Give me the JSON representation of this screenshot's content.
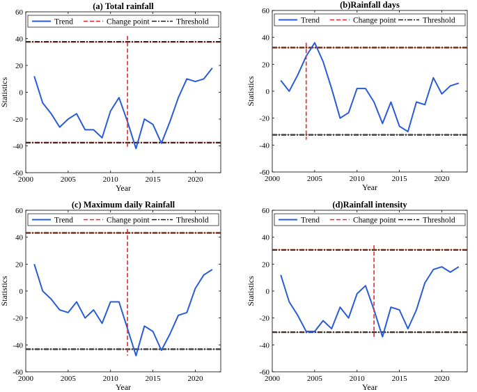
{
  "figure": {
    "xlabel": "Year",
    "ylabel": "Statistics",
    "legend": {
      "trend": "Trend",
      "change": "Change point",
      "threshold": "Threshold"
    },
    "colors": {
      "trend": "#2a5bd7",
      "change": "#e8262b",
      "threshold": "#1a1a1a",
      "threshold_inner": "#b24a2e"
    }
  },
  "chart_data": [
    {
      "type": "line",
      "title": "(a) Total rainfall",
      "xlabel": "Year",
      "ylabel": "Statistics",
      "xlim": [
        2000,
        2023
      ],
      "ylim": [
        -60,
        60
      ],
      "xticks": [
        2000,
        2005,
        2010,
        2015,
        2020
      ],
      "yticks": [
        -60,
        -40,
        -20,
        0,
        20,
        40,
        60
      ],
      "x": [
        2001,
        2002,
        2003,
        2004,
        2005,
        2006,
        2007,
        2008,
        2009,
        2010,
        2011,
        2012,
        2013,
        2014,
        2015,
        2016,
        2017,
        2018,
        2019,
        2020,
        2021,
        2022
      ],
      "series": [
        {
          "name": "Trend",
          "values": [
            12,
            -8,
            -16,
            -26,
            -20,
            -16,
            -28,
            -28,
            -34,
            -14,
            -4,
            -22,
            -42,
            -20,
            -24,
            -38,
            -22,
            -4,
            10,
            8,
            10,
            18
          ]
        }
      ],
      "change_point": {
        "x": 2012,
        "y_range": [
          -42,
          42
        ]
      },
      "thresholds": [
        37.6,
        -37.6
      ],
      "legend": "top"
    },
    {
      "type": "line",
      "title": "(b)Rainfall days",
      "xlabel": "Year",
      "ylabel": "Statistics",
      "xlim": [
        2000,
        2023
      ],
      "ylim": [
        -60,
        60
      ],
      "xticks": [
        2000,
        2005,
        2010,
        2015,
        2020
      ],
      "yticks": [
        -60,
        -40,
        -20,
        0,
        20,
        40,
        60
      ],
      "x": [
        2001,
        2002,
        2003,
        2004,
        2005,
        2006,
        2007,
        2008,
        2009,
        2010,
        2011,
        2012,
        2013,
        2014,
        2015,
        2016,
        2017,
        2018,
        2019,
        2020,
        2021,
        2022
      ],
      "series": [
        {
          "name": "Trend",
          "values": [
            8,
            0,
            12,
            26,
            36,
            22,
            2,
            -20,
            -16,
            2,
            2,
            -8,
            -24,
            -8,
            -26,
            -30,
            -8,
            -10,
            10,
            -2,
            4,
            6
          ]
        }
      ],
      "change_point": {
        "x": 2004,
        "y_range": [
          -36,
          36
        ]
      },
      "thresholds": [
        32.4,
        -32.4
      ],
      "legend": "top"
    },
    {
      "type": "line",
      "title": "(c) Maximum daily Rainfall",
      "xlabel": "Year",
      "ylabel": "Statistics",
      "xlim": [
        2000,
        2023
      ],
      "ylim": [
        -60,
        60
      ],
      "xticks": [
        2000,
        2005,
        2010,
        2015,
        2020
      ],
      "yticks": [
        -60,
        -40,
        -20,
        0,
        20,
        40,
        60
      ],
      "x": [
        2001,
        2002,
        2003,
        2004,
        2005,
        2006,
        2007,
        2008,
        2009,
        2010,
        2011,
        2012,
        2013,
        2014,
        2015,
        2016,
        2017,
        2018,
        2019,
        2020,
        2021,
        2022
      ],
      "series": [
        {
          "name": "Trend",
          "values": [
            20,
            0,
            -6,
            -14,
            -16,
            -8,
            -20,
            -14,
            -24,
            -8,
            -8,
            -28,
            -48,
            -26,
            -30,
            -44,
            -32,
            -18,
            -16,
            2,
            12,
            16
          ]
        }
      ],
      "change_point": {
        "x": 2012,
        "y_range": [
          -48,
          46
        ]
      },
      "thresholds": [
        43.2,
        -43.2
      ],
      "legend": "top"
    },
    {
      "type": "line",
      "title": "(d)Rainfall intensity",
      "xlabel": "Year",
      "ylabel": "Statistics",
      "xlim": [
        2000,
        2023
      ],
      "ylim": [
        -60,
        60
      ],
      "xticks": [
        2000,
        2005,
        2010,
        2015,
        2020
      ],
      "yticks": [
        -60,
        -40,
        -20,
        0,
        20,
        40,
        60
      ],
      "x": [
        2001,
        2002,
        2003,
        2004,
        2005,
        2006,
        2007,
        2008,
        2009,
        2010,
        2011,
        2012,
        2013,
        2014,
        2015,
        2016,
        2017,
        2018,
        2019,
        2020,
        2021,
        2022
      ],
      "series": [
        {
          "name": "Trend",
          "values": [
            12,
            -8,
            -18,
            -30,
            -30,
            -22,
            -28,
            -12,
            -20,
            -2,
            4,
            -14,
            -34,
            -12,
            -14,
            -28,
            -14,
            6,
            16,
            18,
            14,
            18
          ]
        }
      ],
      "change_point": {
        "x": 2012,
        "y_range": [
          -34,
          34
        ]
      },
      "thresholds": [
        30.6,
        -30.6
      ],
      "legend": "top"
    }
  ]
}
